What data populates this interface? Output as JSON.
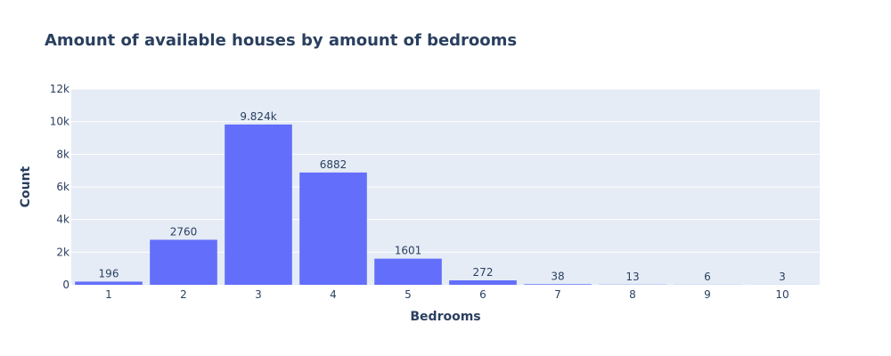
{
  "chart_data": {
    "type": "bar",
    "title": "Amount of available houses by amount of bedrooms",
    "xlabel": "Bedrooms",
    "ylabel": "Count",
    "categories": [
      "1",
      "2",
      "3",
      "4",
      "5",
      "6",
      "7",
      "8",
      "9",
      "10"
    ],
    "values": [
      196,
      2760,
      9824,
      6882,
      1601,
      272,
      38,
      13,
      6,
      3
    ],
    "value_labels": [
      "196",
      "2760",
      "9.824k",
      "6882",
      "1601",
      "272",
      "38",
      "13",
      "6",
      "3"
    ],
    "ylim": [
      0,
      12000
    ],
    "yticks": [
      0,
      2000,
      4000,
      6000,
      8000,
      10000,
      12000
    ],
    "ytick_labels": [
      "0",
      "2k",
      "4k",
      "6k",
      "8k",
      "10k",
      "12k"
    ],
    "grid": true,
    "bar_color": "#636efa",
    "plot_bg": "#e5ecf6",
    "text_color": "#2a3f5f"
  }
}
